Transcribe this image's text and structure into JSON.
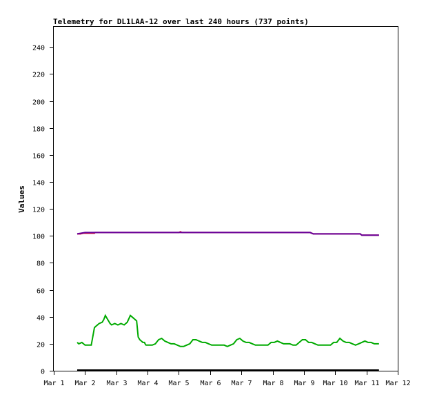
{
  "chart_data": {
    "type": "line",
    "title": "Telemetry for DL1LAA-12 over last 240 hours (737 points)",
    "xlabel": "",
    "ylabel": "Values",
    "x_tick_labels": [
      "Mar 1",
      "Mar 2",
      "Mar 3",
      "Mar 4",
      "Mar 5",
      "Mar 6",
      "Mar 7",
      "Mar 8",
      "Mar 9",
      "Mar 10",
      "Mar 11",
      "Mar 12"
    ],
    "y_ticks": [
      0,
      20,
      40,
      60,
      80,
      100,
      120,
      140,
      160,
      180,
      200,
      220,
      240
    ],
    "xlim": [
      0,
      11
    ],
    "ylim": [
      0,
      255
    ],
    "grid": false,
    "legend": "none",
    "series": [
      {
        "color": "#cc0033",
        "x": [
          0.75,
          0.85,
          0.95,
          1.3,
          1.32,
          4.0,
          4.05,
          4.1,
          8.2,
          8.3,
          9.8,
          9.85,
          10.4
        ],
        "y": [
          101.5,
          101.5,
          102.0,
          102.0,
          102.5,
          102.5,
          103.0,
          102.5,
          102.5,
          101.5,
          101.5,
          100.5,
          100.5
        ]
      },
      {
        "color": "#660099",
        "x": [
          0.75,
          1.0,
          2.0,
          4.0,
          5.0,
          6.0,
          7.0,
          8.0,
          8.2,
          8.3,
          9.0,
          9.8,
          9.85,
          10.4
        ],
        "y": [
          101.5,
          102.5,
          102.5,
          102.5,
          102.5,
          102.5,
          102.5,
          102.5,
          102.5,
          101.5,
          101.5,
          101.5,
          100.5,
          100.5
        ]
      },
      {
        "color": "#000000",
        "x": [
          0.75,
          10.4
        ],
        "y": [
          0.5,
          0.5
        ]
      },
      {
        "color": "#00aa00",
        "x": [
          0.75,
          0.8,
          0.9,
          0.95,
          1.0,
          1.1,
          1.2,
          1.3,
          1.35,
          1.45,
          1.55,
          1.6,
          1.65,
          1.7,
          1.75,
          1.8,
          1.85,
          1.95,
          2.05,
          2.15,
          2.25,
          2.35,
          2.45,
          2.55,
          2.6,
          2.65,
          2.7,
          2.75,
          2.8,
          2.85,
          2.9,
          2.92,
          2.95,
          3.05,
          3.15,
          3.25,
          3.35,
          3.45,
          3.55,
          3.65,
          3.75,
          3.85,
          3.95,
          4.05,
          4.15,
          4.25,
          4.35,
          4.45,
          4.55,
          4.65,
          4.75,
          4.85,
          4.95,
          5.05,
          5.15,
          5.25,
          5.35,
          5.45,
          5.55,
          5.65,
          5.75,
          5.85,
          5.95,
          6.05,
          6.15,
          6.25,
          6.35,
          6.45,
          6.55,
          6.65,
          6.75,
          6.85,
          6.95,
          7.05,
          7.15,
          7.25,
          7.35,
          7.45,
          7.55,
          7.65,
          7.75,
          7.85,
          7.95,
          8.05,
          8.15,
          8.25,
          8.35,
          8.45,
          8.55,
          8.65,
          8.75,
          8.85,
          8.95,
          9.05,
          9.15,
          9.25,
          9.35,
          9.45,
          9.55,
          9.65,
          9.75,
          9.85,
          9.95,
          10.05,
          10.15,
          10.25,
          10.35,
          10.4
        ],
        "y": [
          21,
          20,
          21,
          20,
          19,
          19,
          19,
          32,
          33,
          35,
          36,
          38,
          41,
          39,
          37,
          35,
          34,
          35,
          34,
          35,
          34,
          36,
          41,
          39,
          38,
          37,
          25,
          23,
          22,
          21,
          21,
          20,
          19,
          19,
          19,
          20,
          23,
          24,
          22,
          21,
          20,
          20,
          19,
          18,
          18,
          19,
          20,
          23,
          23,
          22,
          21,
          21,
          20,
          19,
          19,
          19,
          19,
          19,
          18,
          19,
          20,
          23,
          24,
          22,
          21,
          21,
          20,
          19,
          19,
          19,
          19,
          19,
          21,
          21,
          22,
          21,
          20,
          20,
          20,
          19,
          19,
          21,
          23,
          23,
          21,
          21,
          20,
          19,
          19,
          19,
          19,
          19,
          21,
          21,
          24,
          22,
          21,
          21,
          20,
          19,
          20,
          21,
          22,
          21,
          21,
          20,
          20,
          20
        ]
      }
    ]
  }
}
